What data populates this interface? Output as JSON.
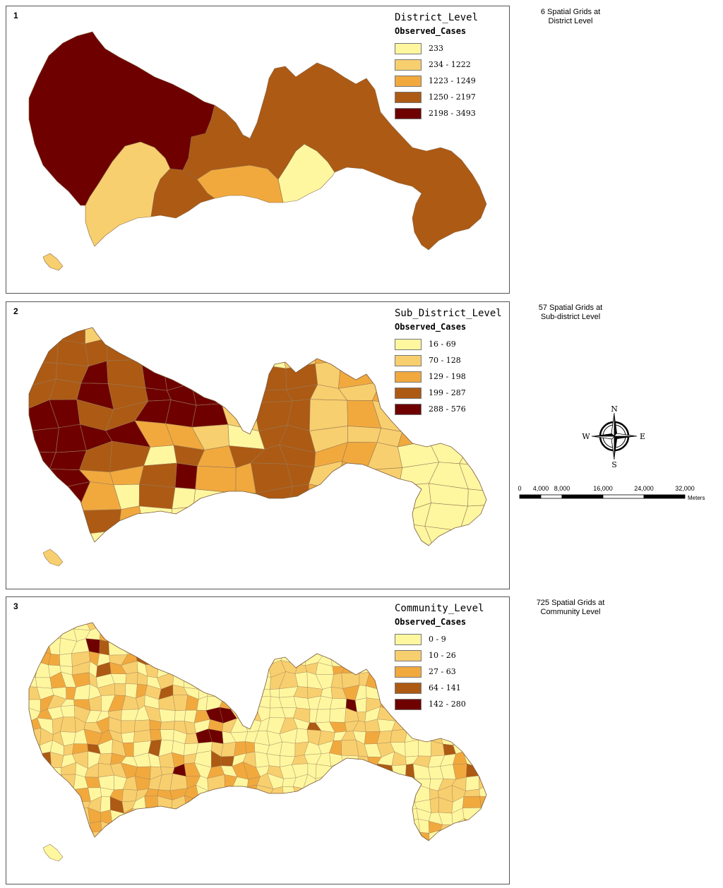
{
  "panels": [
    {
      "number": "1",
      "legend_title": "District_Level",
      "legend_subtitle": "Observed_Cases",
      "classes": [
        {
          "label": "233",
          "color": "#fef7a0"
        },
        {
          "label": "234 - 1222",
          "color": "#f8cf6e"
        },
        {
          "label": "1223 - 1249",
          "color": "#f1a93e"
        },
        {
          "label": "1250 - 2197",
          "color": "#ad5a14"
        },
        {
          "label": "2198 - 3493",
          "color": "#6e0000"
        }
      ],
      "caption": [
        "6 Spatial Grids at",
        "District Level"
      ]
    },
    {
      "number": "2",
      "legend_title": "Sub_District_Level",
      "legend_subtitle": "Observed_Cases",
      "classes": [
        {
          "label": "16 - 69",
          "color": "#fef7a0"
        },
        {
          "label": "70 - 128",
          "color": "#f8cf6e"
        },
        {
          "label": "129 - 198",
          "color": "#f1a93e"
        },
        {
          "label": "199 - 287",
          "color": "#ad5a14"
        },
        {
          "label": "288 - 576",
          "color": "#6e0000"
        }
      ],
      "caption": [
        "57 Spatial Grids at",
        "Sub-district Level"
      ]
    },
    {
      "number": "3",
      "legend_title": "Community_Level",
      "legend_subtitle": "Observed_Cases",
      "classes": [
        {
          "label": "0 - 9",
          "color": "#fef7a0"
        },
        {
          "label": "10 - 26",
          "color": "#f8cf6e"
        },
        {
          "label": "27 - 63",
          "color": "#f1a93e"
        },
        {
          "label": "64 - 141",
          "color": "#ad5a14"
        },
        {
          "label": "142 - 280",
          "color": "#6e0000"
        }
      ],
      "caption": [
        "725 Spatial Grids at",
        "Community Level"
      ]
    }
  ],
  "north_arrow": {
    "n": "N",
    "s": "S",
    "e": "E",
    "w": "W"
  },
  "scale_bar": {
    "ticks": [
      "0",
      "4,000",
      "8,000",
      "16,000",
      "24,000",
      "32,000"
    ],
    "unit": "Meters"
  }
}
